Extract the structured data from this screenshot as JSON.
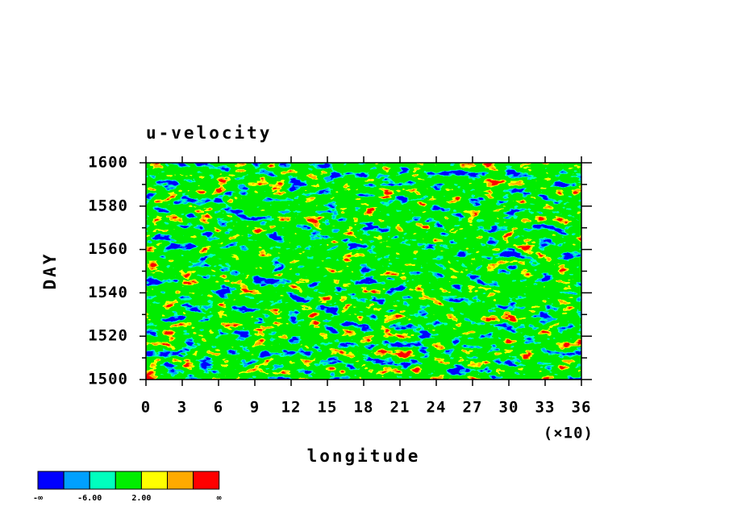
{
  "chart_data": {
    "type": "heatmap",
    "title": "u-velocity",
    "x_label": "longitude",
    "x_multiplier": "(×10)",
    "y_label": "DAY",
    "xlim": [
      0,
      36
    ],
    "xticks": [
      0,
      3,
      6,
      9,
      12,
      15,
      18,
      21,
      24,
      27,
      30,
      33,
      36
    ],
    "ylim": [
      1500,
      1600
    ],
    "yticks": [
      1500,
      1520,
      1540,
      1560,
      1580,
      1600
    ],
    "y_minor_ticks": [
      1510,
      1530,
      1550,
      1570,
      1590
    ],
    "colorbar": {
      "colors": [
        "#0000ff",
        "#00a0ff",
        "#00ffbe",
        "#00ee00",
        "#ffff00",
        "#ffaa00",
        "#ff0000"
      ],
      "labels": [
        "-∞",
        "-6.00",
        "2.00",
        "∞"
      ]
    }
  }
}
